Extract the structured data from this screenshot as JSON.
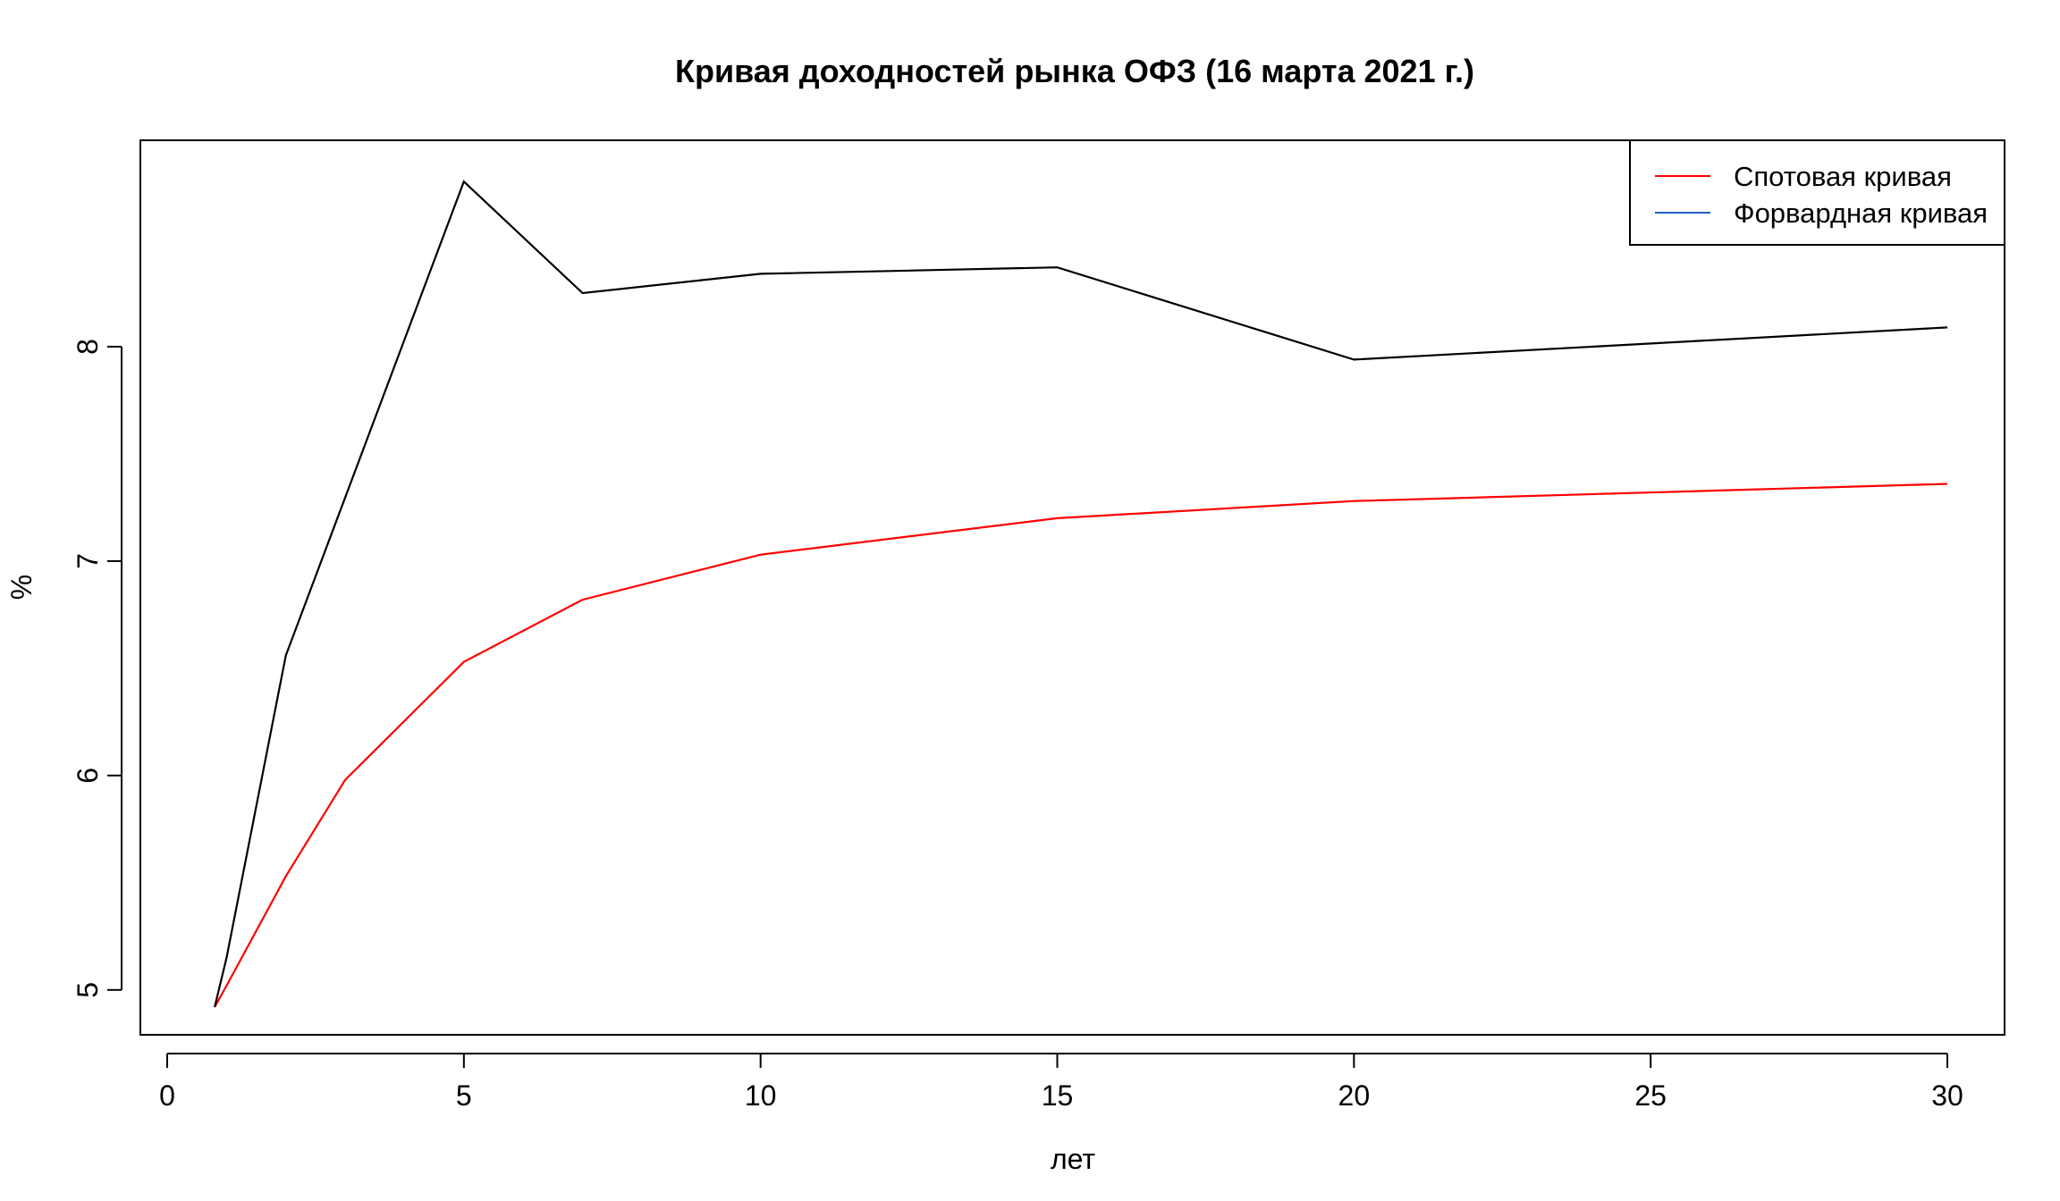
{
  "chart_data": {
    "type": "line",
    "title": "Кривая доходностей рынка ОФЗ (16 марта 2021 г.)",
    "xlabel": "лет",
    "ylabel": "%",
    "xlim": [
      0,
      30
    ],
    "ylim": [
      4.92,
      8.8
    ],
    "x_ticks": [
      0,
      5,
      10,
      15,
      20,
      25,
      30
    ],
    "y_ticks": [
      5,
      6,
      7,
      8
    ],
    "grid": false,
    "legend_position": "top-right",
    "series": [
      {
        "name": "Спотовая кривая",
        "color": "#ff0000",
        "x": [
          0.8,
          1,
          2,
          3,
          5,
          7,
          10,
          15,
          20,
          30
        ],
        "y": [
          4.92,
          5.02,
          5.53,
          5.98,
          6.53,
          6.82,
          7.03,
          7.2,
          7.28,
          7.36
        ]
      },
      {
        "name": "Форвардная кривая",
        "color": "#1f5fbf",
        "x": [],
        "y": []
      },
      {
        "color": "#000000",
        "x": [
          0.8,
          1,
          2,
          5,
          7,
          10,
          15,
          20,
          30
        ],
        "y": [
          4.92,
          5.15,
          6.56,
          8.77,
          8.25,
          8.34,
          8.37,
          7.94,
          8.09
        ]
      }
    ]
  }
}
